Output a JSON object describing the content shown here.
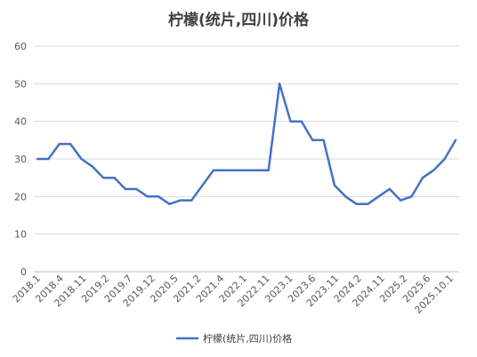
{
  "chart_data": {
    "type": "line",
    "title": "柠檬(统片,四川)价格",
    "xlabel": "",
    "ylabel": "",
    "ylim": [
      0,
      60
    ],
    "yticks": [
      0,
      10,
      20,
      30,
      40,
      50,
      60
    ],
    "grid": true,
    "legend_position": "bottom",
    "series_color": "#4472C4",
    "x_tick_labels": [
      "2018.1",
      "2018.4",
      "2018.11",
      "2019.2",
      "2019.7",
      "2019.12",
      "2020.5",
      "2021.2",
      "2021.4",
      "2022.1",
      "2022.11",
      "2023.1",
      "2023.6",
      "2023.11",
      "2024.2",
      "2024.11",
      "2025.2",
      "2025.6",
      "2025.10.1"
    ],
    "series": [
      {
        "name": "柠檬(统片,四川)价格",
        "values": [
          30,
          30,
          34,
          34,
          30,
          28,
          25,
          25,
          22,
          22,
          20,
          20,
          18,
          19,
          19,
          23,
          27,
          27,
          27,
          27,
          27,
          27,
          50,
          40,
          40,
          35,
          35,
          23,
          20,
          18,
          18,
          20,
          22,
          19,
          20,
          25,
          27,
          30,
          35
        ]
      }
    ]
  }
}
